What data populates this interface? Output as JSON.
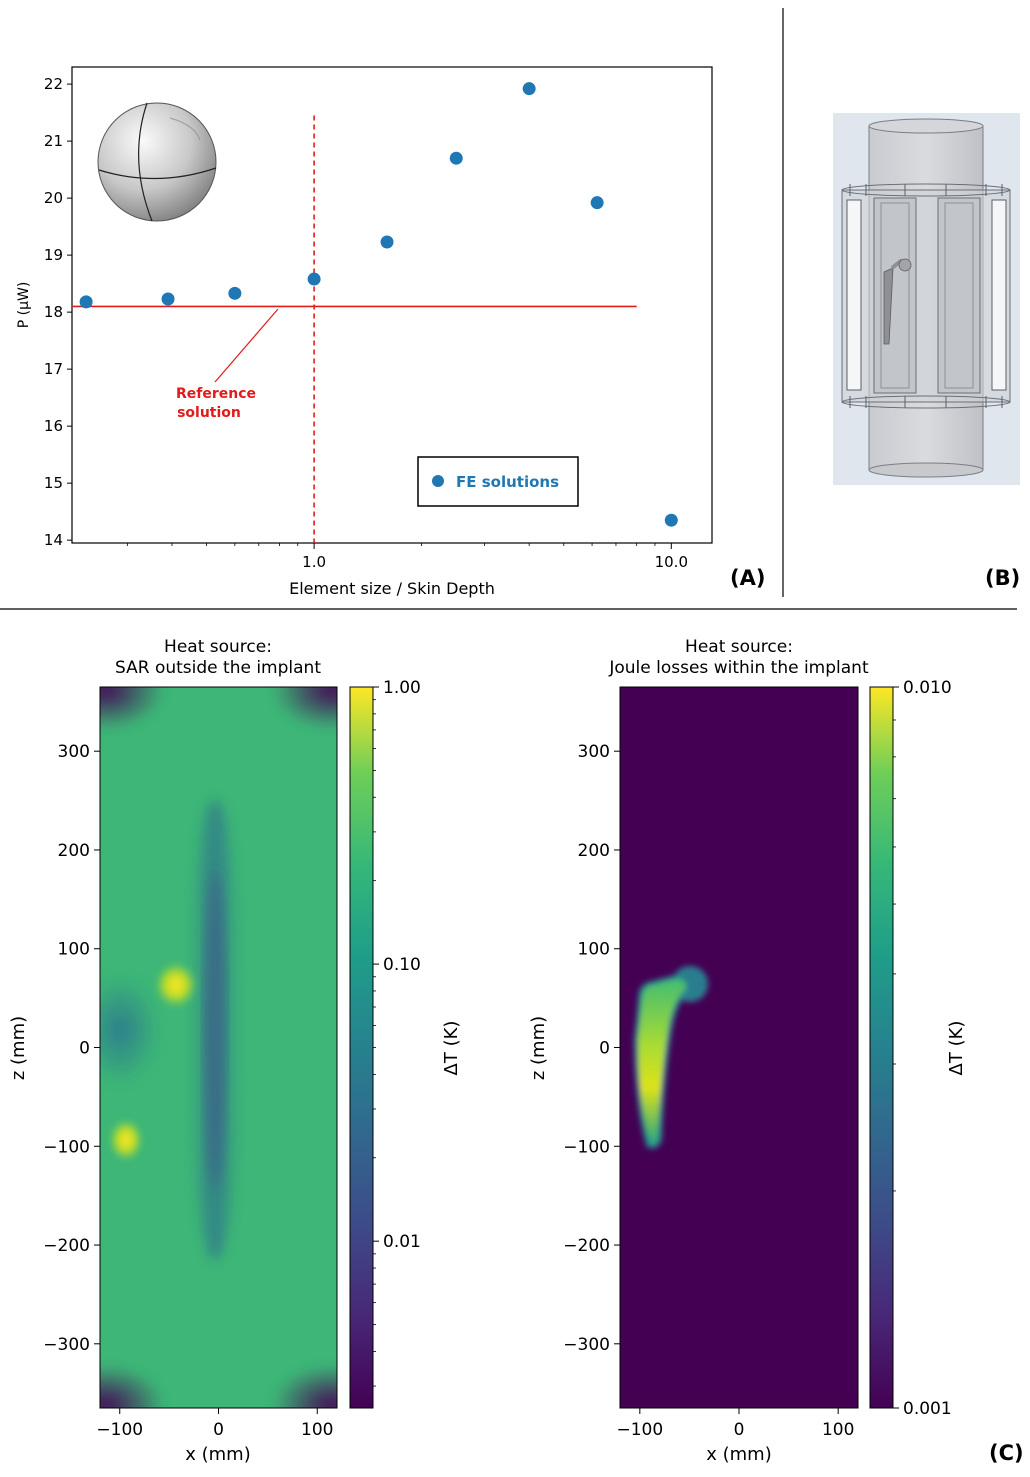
{
  "panel_labels": [
    "(A)",
    "(B)",
    "(C)"
  ],
  "chart_data": [
    {
      "panel": "(A)",
      "type": "scatter",
      "xlabel": "Element size / Skin Depth",
      "ylabel": "P (μW)",
      "xscale": "log",
      "xlim": [
        0.21,
        13.0
      ],
      "ylim": [
        13.95,
        22.3
      ],
      "xticks": [
        1.0,
        10.0
      ],
      "xtick_labels": [
        "1.0",
        "10.0"
      ],
      "yticks": [
        14,
        15,
        16,
        17,
        18,
        19,
        20,
        21,
        22
      ],
      "ytick_labels": [
        "14",
        "15",
        "16",
        "17",
        "18",
        "19",
        "20",
        "21",
        "22"
      ],
      "grid": false,
      "legend": "lower-right",
      "series": [
        {
          "name": "FE solutions",
          "color": "#1f77b4",
          "x": [
            0.23,
            0.39,
            0.6,
            1.0,
            1.6,
            2.5,
            4.0,
            6.2,
            10.0
          ],
          "y": [
            18.18,
            18.23,
            18.33,
            18.58,
            19.23,
            20.7,
            21.92,
            19.92,
            14.35
          ]
        }
      ],
      "reference": {
        "y": 18.1,
        "x_range": [
          0.21,
          8.0
        ],
        "color": "#e31a1c"
      },
      "vline": {
        "x": 1.0,
        "y_range": [
          13.95,
          21.45
        ],
        "color": "#e31a1c"
      },
      "annotation": {
        "text_lines": [
          "Reference",
          "solution"
        ],
        "color": "#e31a1c"
      }
    },
    {
      "panel": "(C) left",
      "type": "heatmap",
      "title_lines": [
        "Heat source:",
        "SAR outside the implant"
      ],
      "xlabel": "x (mm)",
      "ylabel": "z (mm)",
      "xlim": [
        -120,
        120
      ],
      "ylim": [
        -365,
        365
      ],
      "xticks": [
        -100,
        0,
        100
      ],
      "xtick_labels": [
        "−100",
        "0",
        "100"
      ],
      "yticks": [
        300,
        200,
        100,
        0,
        -100,
        -200,
        -300
      ],
      "ytick_labels": [
        "300",
        "200",
        "100",
        "0",
        "−100",
        "−200",
        "−300"
      ],
      "colormap": "viridis",
      "colorbar": {
        "label": "ΔT (K)",
        "scale": "log",
        "ticks": [
          1.0,
          0.1,
          0.01
        ],
        "tick_labels": [
          "1.00",
          "0.10",
          "0.01"
        ],
        "range": [
          0.0025,
          1.0
        ]
      }
    },
    {
      "panel": "(C) right",
      "type": "heatmap",
      "title_lines": [
        "Heat source:",
        "Joule losses within the implant"
      ],
      "xlabel": "x (mm)",
      "ylabel": "z (mm)",
      "xlim": [
        -120,
        120
      ],
      "ylim": [
        -365,
        365
      ],
      "xticks": [
        -100,
        0,
        100
      ],
      "xtick_labels": [
        "−100",
        "0",
        "100"
      ],
      "yticks": [
        300,
        200,
        100,
        0,
        -100,
        -200,
        -300
      ],
      "ytick_labels": [
        "300",
        "200",
        "100",
        "0",
        "−100",
        "−200",
        "−300"
      ],
      "colormap": "viridis",
      "colorbar": {
        "label": "ΔT (K)",
        "scale": "log",
        "ticks": [
          0.01,
          0.001
        ],
        "tick_labels": [
          "0.010",
          "0.001"
        ],
        "range": [
          0.001,
          0.01
        ]
      }
    }
  ]
}
